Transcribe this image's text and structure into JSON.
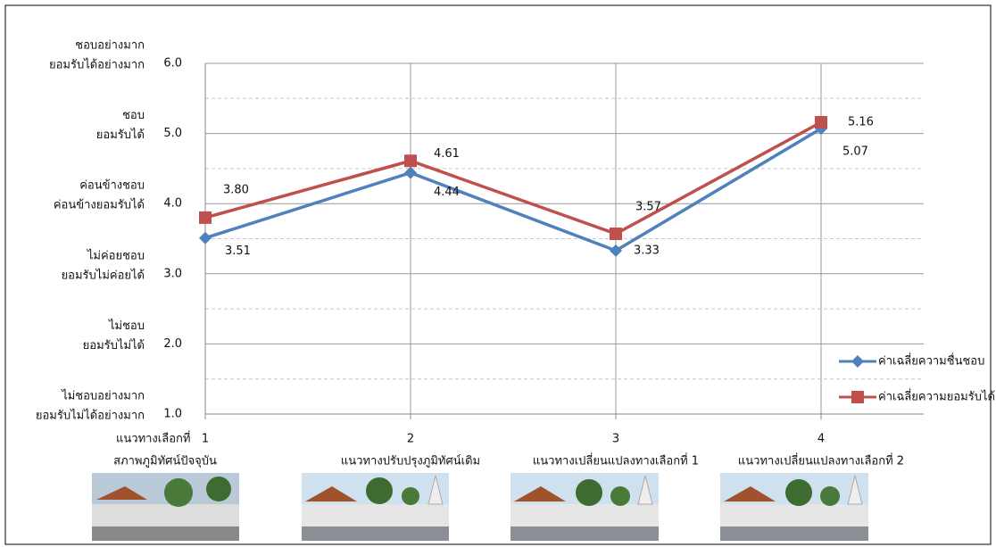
{
  "chart_data": {
    "type": "line",
    "x_label": "แนวทางเลือกที่",
    "x": [
      1,
      2,
      3,
      4
    ],
    "xlim": [
      1,
      4.5
    ],
    "xticks": [
      1,
      2,
      3,
      4
    ],
    "category_descriptions": [
      "สภาพภูมิทัศน์ปัจจุบัน",
      "แนวทางปรับปรุงภูมิทัศน์เดิม",
      "แนวทางเปลี่ยนแปลงทางเลือกที่ 1",
      "แนวทางเปลี่ยนแปลงทางเลือกที่ 2"
    ],
    "ylim": [
      1,
      6
    ],
    "yticks": [
      {
        "value": 1,
        "label": "1.0"
      },
      {
        "value": 2,
        "label": "2.0"
      },
      {
        "value": 3,
        "label": "3.0"
      },
      {
        "value": 4,
        "label": "4.0"
      },
      {
        "value": 5,
        "label": "5.0"
      },
      {
        "value": 6,
        "label": "6.0"
      }
    ],
    "yminorticks": [
      1.5,
      2.5,
      3.5,
      4.5,
      5.5
    ],
    "y_level_labels": [
      [
        "ไม่ชอบอย่างมาก",
        "ยอมรับไม่ได้อย่างมาก"
      ],
      [
        "ไม่ชอบ",
        "ยอมรับไม่ได้"
      ],
      [
        "ไม่ค่อยชอบ",
        "ยอมรับไม่ค่อยได้"
      ],
      [
        "ค่อนข้างชอบ",
        "ค่อนข้างยอมรับได้"
      ],
      [
        "ชอบ",
        "ยอมรับได้"
      ],
      [
        "ชอบอย่างมาก",
        "ยอมรับได้อย่างมาก"
      ]
    ],
    "grid": true,
    "legend": "lower right",
    "series": [
      {
        "name": "ค่าเฉลี่ยความชื่นชอบ",
        "color": "#4f81bd",
        "marker": "diamond",
        "values": [
          3.51,
          4.44,
          3.33,
          5.07
        ]
      },
      {
        "name": "ค่าเฉลี่ยความยอมรับได้",
        "color": "#c0504d",
        "marker": "square",
        "values": [
          3.8,
          4.61,
          3.57,
          5.16
        ],
        "value_labels": [
          "3.80",
          "4.61",
          "3.57",
          "5.16"
        ]
      }
    ]
  }
}
